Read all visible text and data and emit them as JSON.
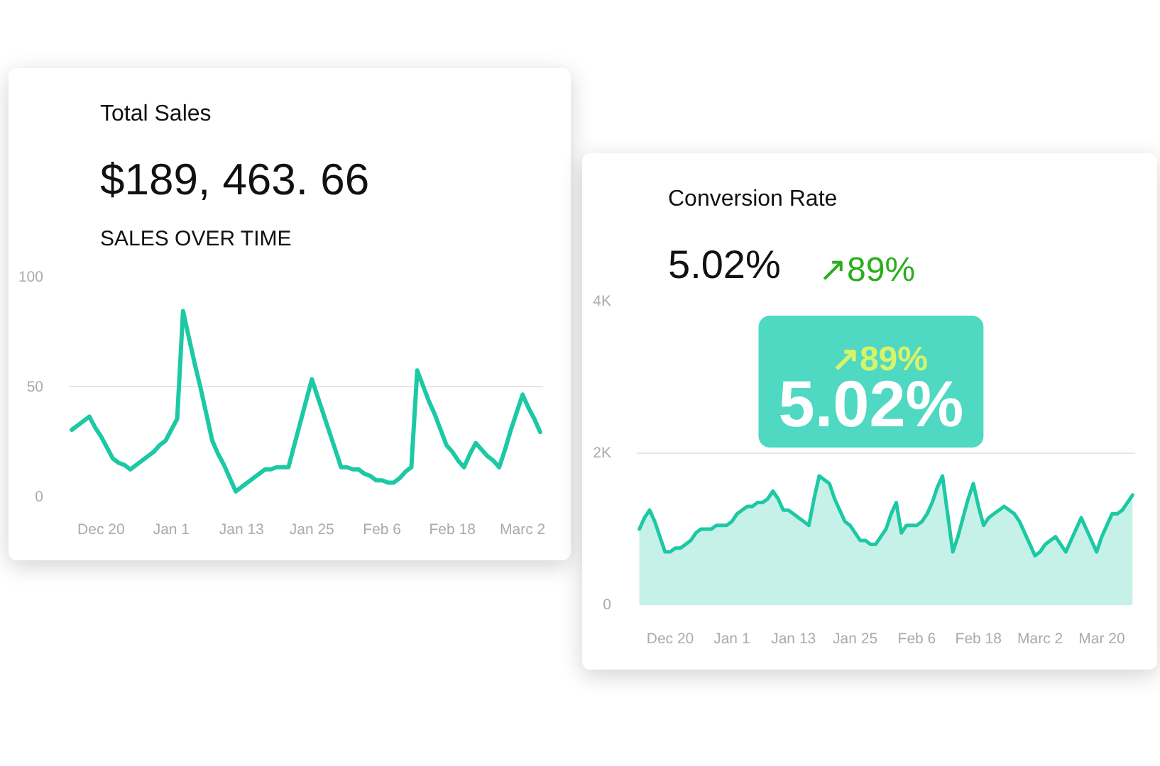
{
  "chart_data": [
    {
      "type": "line",
      "title": "Total Sales",
      "subtitle": "SALES OVER TIME",
      "annotations": [
        "$189, 463. 66"
      ],
      "categories": [
        null,
        null,
        null,
        null,
        null,
        "Dec 20",
        null,
        null,
        null,
        null,
        null,
        null,
        null,
        null,
        null,
        null,
        null,
        "Jan 1",
        null,
        null,
        null,
        null,
        null,
        null,
        null,
        null,
        null,
        null,
        null,
        "Jan 13",
        null,
        null,
        null,
        null,
        null,
        null,
        null,
        null,
        null,
        null,
        null,
        "Jan 25",
        null,
        null,
        null,
        null,
        null,
        null,
        null,
        null,
        null,
        null,
        null,
        "Feb 6",
        null,
        null,
        null,
        null,
        null,
        null,
        null,
        null,
        null,
        null,
        null,
        "Feb 18",
        null,
        null,
        null,
        null,
        null,
        null,
        null,
        null,
        null,
        null,
        null,
        "Marc 2",
        null,
        null,
        null
      ],
      "series": [
        {
          "color": "#1dc9a4",
          "values": [
            30,
            32,
            34,
            36,
            31,
            27,
            22,
            17,
            15,
            14,
            12,
            14,
            16,
            18,
            20,
            23,
            25,
            30,
            35,
            84,
            72,
            60,
            49,
            37,
            25,
            19,
            14,
            8,
            2,
            4,
            6,
            8,
            10,
            12,
            12,
            13,
            13,
            13,
            23,
            33,
            43,
            53,
            45,
            37,
            29,
            21,
            13,
            13,
            12,
            12,
            10,
            9,
            7,
            7,
            6,
            6,
            8,
            11,
            13,
            57,
            50,
            43,
            37,
            30,
            23,
            20,
            16,
            13,
            19,
            24,
            21,
            18,
            16,
            13,
            21,
            30,
            38,
            46,
            40,
            35,
            29
          ]
        }
      ],
      "ylim": [
        0,
        100
      ],
      "yticks": [
        0,
        50,
        100
      ],
      "grid": "y"
    },
    {
      "type": "area",
      "title": "Conversion Rate",
      "annotations": [
        "5.02%",
        "↗89%",
        "↗89%",
        "5.02%"
      ],
      "categories": [
        null,
        null,
        null,
        null,
        null,
        null,
        "Dec 20",
        null,
        null,
        null,
        null,
        null,
        null,
        null,
        null,
        null,
        null,
        null,
        "Jan 1",
        null,
        null,
        null,
        null,
        null,
        null,
        null,
        null,
        null,
        null,
        null,
        "Jan 13",
        null,
        null,
        null,
        null,
        null,
        null,
        null,
        null,
        null,
        null,
        null,
        "Jan 25",
        null,
        null,
        null,
        null,
        null,
        null,
        null,
        null,
        null,
        null,
        null,
        "Feb 6",
        null,
        null,
        null,
        null,
        null,
        null,
        null,
        null,
        null,
        null,
        null,
        "Feb 18",
        null,
        null,
        null,
        null,
        null,
        null,
        null,
        null,
        null,
        null,
        null,
        "Marc 2",
        null,
        null,
        null,
        null,
        null,
        null,
        null,
        null,
        null,
        null,
        null,
        "Mar 20",
        null,
        null,
        null,
        null,
        null,
        null
      ],
      "series": [
        {
          "color": "#1dc9a4",
          "values": [
            1000,
            1150,
            1250,
            1100,
            900,
            700,
            700,
            750,
            750,
            800,
            850,
            950,
            1000,
            1000,
            1000,
            1050,
            1050,
            1050,
            1100,
            1200,
            1250,
            1300,
            1300,
            1350,
            1350,
            1400,
            1500,
            1400,
            1250,
            1250,
            1200,
            1150,
            1100,
            1050,
            1400,
            1700,
            1650,
            1600,
            1400,
            1250,
            1100,
            1050,
            950,
            850,
            850,
            800,
            800,
            900,
            1000,
            1200,
            1350,
            950,
            1050,
            1050,
            1050,
            1100,
            1200,
            1350,
            1550,
            1700,
            1200,
            700,
            900,
            1150,
            1400,
            1600,
            1300,
            1050,
            1150,
            1200,
            1250,
            1300,
            1250,
            1200,
            1100,
            950,
            800,
            650,
            700,
            800,
            850,
            900,
            800,
            700,
            850,
            1000,
            1150,
            1000,
            850,
            700,
            900,
            1050,
            1200,
            1200,
            1250,
            1350,
            1450
          ]
        }
      ],
      "ylim": [
        0,
        4000
      ],
      "yticks": [
        0,
        {
          "value": 2000,
          "label": "2K"
        },
        {
          "value": 4000,
          "label": "4K"
        }
      ],
      "grid": "y"
    }
  ]
}
